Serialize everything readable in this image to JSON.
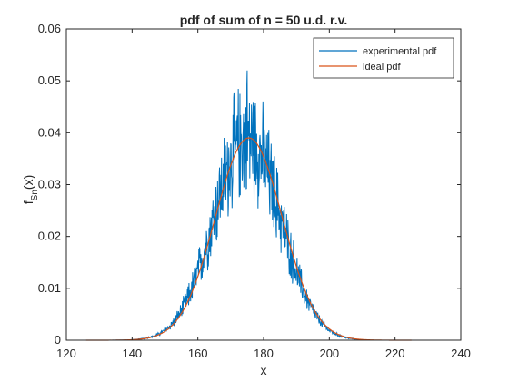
{
  "chart_data": {
    "type": "line",
    "title": "pdf of sum of n = 50 u.d. r.v.",
    "xlabel": "x",
    "ylabel_main": "f",
    "ylabel_sub": "Sn",
    "ylabel_arg": "(x)",
    "xlim": [
      120,
      240
    ],
    "ylim": [
      0,
      0.06
    ],
    "x_ticks": [
      120,
      140,
      160,
      180,
      200,
      220,
      240
    ],
    "y_ticks": [
      0,
      0.01,
      0.02,
      0.03,
      0.04,
      0.05,
      0.06
    ],
    "x_tick_labels": [
      "120",
      "140",
      "160",
      "180",
      "200",
      "220",
      "240"
    ],
    "y_tick_labels": [
      "0",
      "0.01",
      "0.02",
      "0.03",
      "0.04",
      "0.05",
      "0.06"
    ],
    "grid": false,
    "legend_position": "top-right",
    "series": [
      {
        "name": "experimental pdf",
        "color": "#0072BD",
        "style": "noisy",
        "x_range": [
          126,
          209
        ],
        "peak_x": 175,
        "peak_y": 0.052,
        "center": 175,
        "sigma": 10.2,
        "amplitude": 0.039
      },
      {
        "name": "ideal pdf",
        "color": "#D95319",
        "style": "smooth",
        "x_range": [
          126,
          225
        ],
        "center": 175.5,
        "sigma": 10.2,
        "amplitude": 0.039
      }
    ]
  }
}
